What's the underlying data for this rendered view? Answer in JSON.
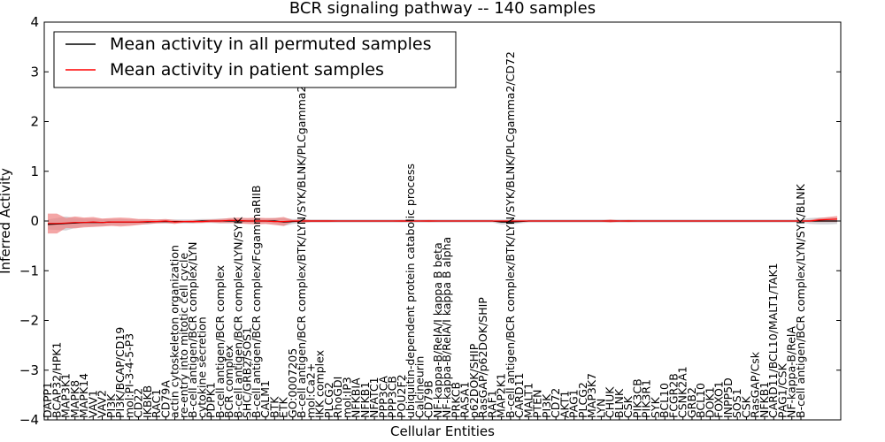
{
  "chart_data": {
    "type": "line",
    "title": "BCR signaling pathway -- 140 samples",
    "xlabel": "Cellular Entities",
    "ylabel": "Inferred Activity",
    "ylim": [
      -4,
      4
    ],
    "yticks": [
      -4,
      -3,
      -2,
      -1,
      0,
      1,
      2,
      3,
      4
    ],
    "ytick_labels": [
      "−4",
      "−3",
      "−2",
      "−1",
      "0",
      "1",
      "2",
      "3",
      "4"
    ],
    "legend": {
      "placement": "top-left",
      "entries": [
        {
          "label": "Mean activity in all permuted samples",
          "color": "#000000"
        },
        {
          "label": "Mean activity in patient samples",
          "color": "#ff0000"
        }
      ]
    },
    "colors": {
      "patient_line": "#ff0000",
      "patient_band": "#f08080",
      "permuted_line": "#000000",
      "permuted_band": "#b0b0b8"
    },
    "entities": [
      "DAPP1",
      "BCAP32/HPK1",
      "MAP3K1",
      "MAPK8",
      "MAPK14",
      "VAV1",
      "VAV2",
      "PI3K",
      "PI3K/BCAP/CD19",
      "mol:PI-3-4-5-P3",
      "CD22",
      "IKBKB",
      "RAC1",
      "CD79A",
      "actin cytoskeleton organization",
      "re-entry into mitotic cell cycle",
      "B-cell antigen/BCR complex/LYN",
      "cytokine secretion",
      "PDPK1",
      "B-cell antigen/BCR complex",
      "BCR complex",
      "B-cell antigen/BCR complex/LYN/SYK",
      "SHC/GRB2/SOS1",
      "B-cell antigen/BCR complex/FcgammaRIIB",
      "CALM1",
      "BTK",
      "ETK",
      "GO:0007205",
      "B-cell antigen/BCR complex/BTK/LYN/SYK/BLNK/PLCgamma2",
      "mol:Ca2+",
      "IKK complex",
      "PLCG2",
      "RhoGDI",
      "mol:IP3",
      "NFKBIA",
      "NFKB1",
      "NFATC1",
      "PPP3CA",
      "PPP3CB",
      "POU2F2",
      "ubiquitin-dependent protein catabolic process",
      "Calcineurin",
      "CD79B",
      "NF-kappa-B/RelA/I kappa B beta",
      "NF-kappa-B/RelA/I kappa B alpha",
      "PRKCB",
      "RASA1",
      "p62DOK/SHIP",
      "RasGAP/p62DOK/SHIP",
      "RAF1",
      "MAP2K1",
      "B-cell antigen/BCR complex/BTK/LYN/SYK/BLNK/PLCgamma2/CD72",
      "CARD11",
      "MALT1",
      "PTEN",
      "PI3K",
      "CD72",
      "AKT1",
      "PAG1",
      "PLCG2",
      "MAP3K7",
      "LYN",
      "CHUK",
      "BLNK",
      "CSK",
      "PIK3CB",
      "PIK3R1",
      "SYK",
      "BCL10",
      "FCGR2B",
      "CSNK2A1",
      "GRB2",
      "BCL10",
      "DOK1",
      "FOXO1",
      "INPP5D",
      "SOS1",
      "CSK",
      "RasGAP/Csk",
      "NFKB1",
      "CARD11/BCL10/MALT1/TAK1",
      "PAG1/CSK",
      "NF-kappa-B/RelA",
      "B-cell antigen/BCR complex/LYN/SYK/BLNK"
    ],
    "x": [
      0,
      1,
      2,
      3,
      4,
      5,
      6,
      7,
      8,
      9,
      10,
      11,
      12,
      13,
      14,
      15,
      16,
      17,
      18,
      19,
      20,
      21,
      22,
      23,
      24,
      25,
      26,
      27,
      28,
      29,
      30,
      31,
      32,
      33,
      34,
      35,
      36,
      37,
      38,
      39,
      40,
      41,
      42,
      43,
      44,
      45,
      46,
      47,
      48,
      49,
      50,
      51,
      52,
      53,
      54,
      55,
      56,
      57,
      58,
      59,
      60,
      61,
      62,
      63,
      64,
      65,
      66,
      67,
      68,
      69,
      70,
      71,
      72,
      73,
      74,
      75,
      76,
      77,
      78,
      79,
      80,
      81,
      82,
      83,
      84,
      85,
      86,
      87
    ],
    "series": [
      {
        "name": "Mean activity in patient samples",
        "values": [
          -0.05,
          -0.05,
          -0.04,
          -0.03,
          -0.03,
          -0.02,
          -0.03,
          -0.02,
          -0.02,
          -0.02,
          -0.02,
          -0.01,
          -0.01,
          0.0,
          -0.02,
          -0.01,
          -0.01,
          -0.01,
          0.0,
          0.0,
          0.01,
          0.01,
          0.0,
          0.0,
          0.0,
          -0.01,
          -0.01,
          0.0,
          0.0,
          0.0,
          0.0,
          0.0,
          0.0,
          0.0,
          0.0,
          0.0,
          0.0,
          0.0,
          0.0,
          0.0,
          0.0,
          0.0,
          0.0,
          0.0,
          0.0,
          0.0,
          0.0,
          0.0,
          0.0,
          0.0,
          0.0,
          0.0,
          0.0,
          0.0,
          0.0,
          0.0,
          0.0,
          0.0,
          0.0,
          0.0,
          0.0,
          0.0,
          0.0,
          0.0,
          0.0,
          0.0,
          0.0,
          0.0,
          0.0,
          0.0,
          0.0,
          0.0,
          0.0,
          0.0,
          0.0,
          0.0,
          0.0,
          0.0,
          0.0,
          0.0,
          0.0,
          0.0,
          0.0,
          0.0,
          0.0,
          0.02,
          0.03,
          0.04
        ],
        "band_half_width": [
          0.2,
          0.2,
          0.1,
          0.12,
          0.1,
          0.1,
          0.08,
          0.08,
          0.09,
          0.08,
          0.06,
          0.05,
          0.04,
          0.04,
          0.04,
          0.02,
          0.03,
          0.03,
          0.03,
          0.04,
          0.05,
          0.06,
          0.06,
          0.07,
          0.06,
          0.07,
          0.09,
          0.02,
          0.03,
          0.02,
          0.02,
          0.02,
          0.01,
          0.01,
          0.01,
          0.01,
          0.01,
          0.01,
          0.01,
          0.02,
          0.01,
          0.01,
          0.02,
          0.01,
          0.01,
          0.01,
          0.01,
          0.01,
          0.01,
          0.01,
          0.01,
          0.01,
          0.01,
          0.01,
          0.01,
          0.01,
          0.01,
          0.01,
          0.01,
          0.01,
          0.01,
          0.01,
          0.03,
          0.01,
          0.02,
          0.01,
          0.01,
          0.01,
          0.01,
          0.01,
          0.01,
          0.01,
          0.01,
          0.01,
          0.01,
          0.01,
          0.01,
          0.01,
          0.01,
          0.01,
          0.01,
          0.01,
          0.01,
          0.01,
          0.02,
          0.04,
          0.05,
          0.06
        ]
      },
      {
        "name": "Mean activity in all permuted samples",
        "values": [
          -0.07,
          -0.06,
          -0.05,
          -0.04,
          -0.03,
          -0.03,
          -0.03,
          -0.02,
          -0.02,
          -0.02,
          -0.02,
          -0.02,
          -0.01,
          -0.01,
          -0.01,
          -0.01,
          -0.01,
          0.0,
          0.0,
          0.0,
          0.0,
          0.0,
          0.0,
          0.0,
          0.0,
          0.0,
          -0.02,
          -0.01,
          0.0,
          0.0,
          0.0,
          0.0,
          0.0,
          0.0,
          0.0,
          0.0,
          0.0,
          0.0,
          0.0,
          0.0,
          0.0,
          0.0,
          0.0,
          0.0,
          0.0,
          0.0,
          0.0,
          0.0,
          0.0,
          0.0,
          -0.02,
          -0.02,
          -0.01,
          0.0,
          0.0,
          0.0,
          0.0,
          0.0,
          0.0,
          0.0,
          0.0,
          0.0,
          0.0,
          0.0,
          0.0,
          0.0,
          0.0,
          0.0,
          0.0,
          0.0,
          0.0,
          0.0,
          0.0,
          0.0,
          0.0,
          0.0,
          0.0,
          0.0,
          0.0,
          0.0,
          0.0,
          0.0,
          0.0,
          0.0,
          0.0,
          0.0,
          0.0,
          0.0
        ],
        "band_half_width": [
          0.1,
          0.12,
          0.14,
          0.1,
          0.08,
          0.08,
          0.07,
          0.06,
          0.06,
          0.05,
          0.05,
          0.05,
          0.04,
          0.04,
          0.04,
          0.04,
          0.04,
          0.04,
          0.04,
          0.05,
          0.05,
          0.04,
          0.05,
          0.05,
          0.05,
          0.06,
          0.08,
          0.05,
          0.04,
          0.03,
          0.03,
          0.03,
          0.03,
          0.03,
          0.03,
          0.03,
          0.03,
          0.03,
          0.03,
          0.03,
          0.03,
          0.03,
          0.03,
          0.03,
          0.03,
          0.03,
          0.03,
          0.03,
          0.03,
          0.03,
          0.05,
          0.05,
          0.04,
          0.03,
          0.03,
          0.03,
          0.03,
          0.03,
          0.03,
          0.03,
          0.03,
          0.03,
          0.03,
          0.03,
          0.03,
          0.03,
          0.03,
          0.03,
          0.03,
          0.03,
          0.03,
          0.03,
          0.03,
          0.03,
          0.03,
          0.03,
          0.03,
          0.03,
          0.03,
          0.03,
          0.03,
          0.03,
          0.03,
          0.03,
          0.06,
          0.07,
          0.07,
          0.06
        ]
      }
    ]
  }
}
